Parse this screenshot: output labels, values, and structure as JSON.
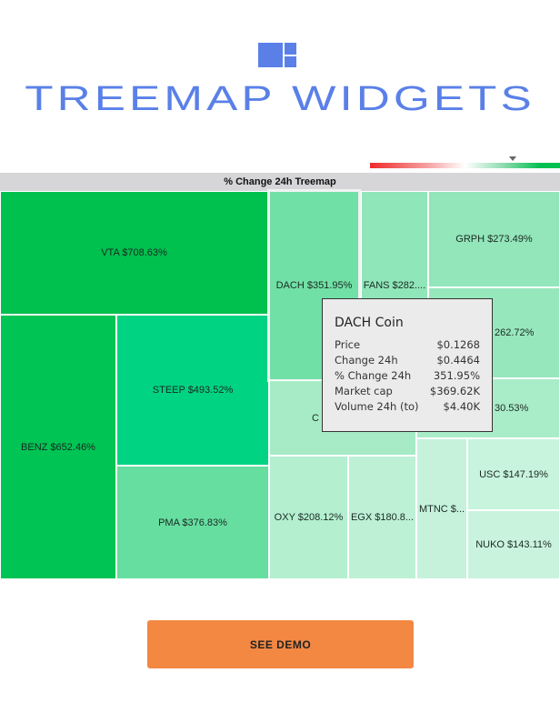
{
  "header": {
    "title": "TREEMAP WIDGETS"
  },
  "treemap": {
    "title": "% Change 24h Treemap",
    "cells": [
      {
        "label": "VTA $708.63%",
        "color": "#00c04e"
      },
      {
        "label": "BENZ $652.46%",
        "color": "#00c453"
      },
      {
        "label": "STEEP $493.52%",
        "color": "#00d382"
      },
      {
        "label": "PMA $376.83%",
        "color": "#66dea0"
      },
      {
        "label": "DACH $351.95%",
        "color": "#71e0a6"
      },
      {
        "label": "FANS $282....",
        "color": "#8fe6b8"
      },
      {
        "label": "GRPH $273.49%",
        "color": "#92e6ba"
      },
      {
        "label": "262.72%",
        "color": "#97e7bd"
      },
      {
        "label": "C",
        "color": "#a6ebc6"
      },
      {
        "label": "30.53%",
        "color": "#a9ecc8"
      },
      {
        "label": "OXY $208.12%",
        "color": "#b4efd0"
      },
      {
        "label": "EGX $180.8...",
        "color": "#bdf0d5"
      },
      {
        "label": "MTNC $...",
        "color": "#c6f2db"
      },
      {
        "label": "USC $147.19%",
        "color": "#c8f3dc"
      },
      {
        "label": "NUKO $143.11%",
        "color": "#caf3dd"
      }
    ]
  },
  "tooltip": {
    "title": "DACH Coin",
    "rows": [
      {
        "label": "Price",
        "value": "$0.1268"
      },
      {
        "label": "Change 24h",
        "value": "$0.4464"
      },
      {
        "label": "% Change 24h",
        "value": "351.95%"
      },
      {
        "label": "Market cap",
        "value": "$369.62K"
      },
      {
        "label": "Volume 24h (to)",
        "value": "$4.40K"
      }
    ]
  },
  "button": {
    "label": "SEE DEMO",
    "color": "#f38843"
  }
}
